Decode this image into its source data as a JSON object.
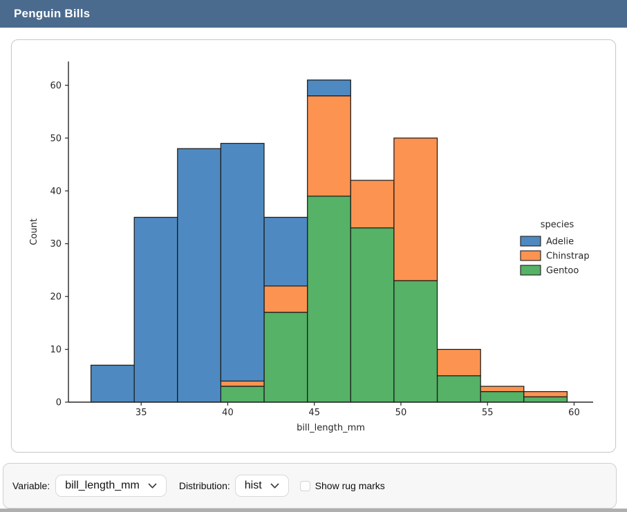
{
  "header": {
    "title": "Penguin Bills"
  },
  "colors": {
    "header_bg": "#4a6b8e",
    "adelie": "#4e8ac1",
    "chinstrap": "#fc9351",
    "gentoo": "#55b266"
  },
  "chart_data": {
    "type": "bar",
    "subtype": "stacked-histogram",
    "title": "",
    "xlabel": "bill_length_mm",
    "ylabel": "Count",
    "legend_title": "species",
    "legend_position": "right",
    "grid": false,
    "bin_edges": [
      32.1,
      34.6,
      37.1,
      39.6,
      42.1,
      44.6,
      47.1,
      49.6,
      52.1,
      54.6,
      57.1,
      59.6
    ],
    "x_ticks": [
      35,
      40,
      45,
      50,
      55,
      60
    ],
    "y_ticks": [
      0,
      10,
      20,
      30,
      40,
      50,
      60
    ],
    "xlim": [
      30.8,
      61.1
    ],
    "ylim": [
      0,
      64.5
    ],
    "edge_color": "#1c1c1c",
    "series": [
      {
        "name": "Gentoo",
        "color": "#55b266",
        "values": [
          0,
          0,
          0,
          3,
          17,
          39,
          33,
          23,
          5,
          2,
          1
        ]
      },
      {
        "name": "Chinstrap",
        "color": "#fc9351",
        "values": [
          0,
          0,
          0,
          1,
          5,
          19,
          9,
          27,
          5,
          1,
          1
        ]
      },
      {
        "name": "Adelie",
        "color": "#4e8ac1",
        "values": [
          7,
          35,
          48,
          45,
          13,
          3,
          0,
          0,
          0,
          0,
          0
        ]
      }
    ],
    "stack_order_bottom_to_top": [
      "Gentoo",
      "Chinstrap",
      "Adelie"
    ],
    "legend_order": [
      "Adelie",
      "Chinstrap",
      "Gentoo"
    ],
    "bar_totals": [
      7,
      35,
      48,
      49,
      35,
      61,
      42,
      50,
      10,
      3,
      2
    ]
  },
  "controls": {
    "variable_label": "Variable:",
    "variable_value": "bill_length_mm",
    "distribution_label": "Distribution:",
    "distribution_value": "hist",
    "rug_label": "Show rug marks",
    "rug_checked": false
  }
}
